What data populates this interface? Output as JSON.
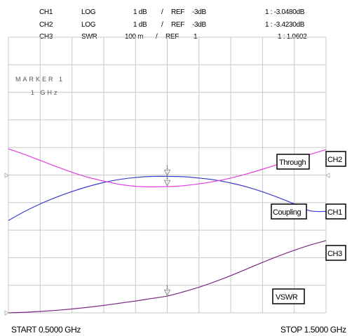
{
  "header": {
    "rows": [
      {
        "ch": "CH1",
        "fmt": "LOG",
        "scale": "1 dB",
        "sep": "/",
        "ref_label": "REF",
        "ref_value": "-3dB",
        "marker_value": "1 : -3.0480dB"
      },
      {
        "ch": "CH2",
        "fmt": "LOG",
        "scale": "1 dB",
        "sep": "/",
        "ref_label": "REF",
        "ref_value": "-3dB",
        "marker_value": "1 : -3.4230dB"
      },
      {
        "ch": "CH3",
        "fmt": "SWR",
        "scale": "100 m",
        "sep": "/",
        "ref_label": "REF",
        "ref_value": "1",
        "marker_value": "1 : 1.0602"
      }
    ]
  },
  "marker": {
    "title": "MARKER 1",
    "freq": "1 GHz",
    "number": "1"
  },
  "labels": {
    "through": "Through",
    "coupling": "Coupling",
    "vswr": "VSWR",
    "ch1_tag": "CH1",
    "ch2_tag": "CH2",
    "ch3_tag": "CH3"
  },
  "footer": {
    "start": "START 0.5000 GHz",
    "stop": "STOP 1.5000 GHz"
  },
  "colors": {
    "ch1": "#3b3bcc",
    "ch2": "#e040e0",
    "ch3": "#7a2a80",
    "grid": "#c8c8c8",
    "marker": "#909090"
  },
  "chart_data": {
    "type": "line",
    "x_unit": "GHz",
    "xlim": [
      0.5,
      1.5
    ],
    "grid": true,
    "divisions": {
      "x": 10,
      "y": 10
    },
    "series": [
      {
        "name": "CH1",
        "label": "Coupling",
        "scale_per_div": 1,
        "ref_value": -3,
        "ref_div": 5,
        "unit": "dB",
        "x": [
          0.5,
          0.55,
          0.6,
          0.65,
          0.7,
          0.75,
          0.8,
          0.85,
          0.9,
          0.95,
          1.0,
          1.05,
          1.1,
          1.15,
          1.2,
          1.25,
          1.3,
          1.35,
          1.4,
          1.45,
          1.5
        ],
        "y": [
          -4.65,
          -4.33,
          -4.05,
          -3.81,
          -3.6,
          -3.42,
          -3.27,
          -3.16,
          -3.09,
          -3.05,
          -3.05,
          -3.06,
          -3.11,
          -3.18,
          -3.29,
          -3.43,
          -3.61,
          -3.82,
          -4.05,
          -4.3,
          -4.32
        ]
      },
      {
        "name": "CH2",
        "label": "Through",
        "scale_per_div": 1,
        "ref_value": -3,
        "ref_div": 5,
        "unit": "dB",
        "x": [
          0.5,
          0.55,
          0.6,
          0.65,
          0.7,
          0.75,
          0.8,
          0.85,
          0.9,
          0.95,
          1.0,
          1.05,
          1.1,
          1.15,
          1.2,
          1.25,
          1.3,
          1.35,
          1.4,
          1.45,
          1.5
        ],
        "y": [
          -2.05,
          -2.25,
          -2.47,
          -2.69,
          -2.9,
          -3.08,
          -3.22,
          -3.34,
          -3.41,
          -3.43,
          -3.42,
          -3.39,
          -3.32,
          -3.23,
          -3.11,
          -2.96,
          -2.79,
          -2.61,
          -2.43,
          -2.25,
          -2.08
        ]
      },
      {
        "name": "CH3",
        "label": "VSWR",
        "scale_per_div": 0.1,
        "ref_value": 1,
        "ref_div": 0,
        "unit": "",
        "x": [
          0.5,
          0.55,
          0.6,
          0.65,
          0.7,
          0.75,
          0.8,
          0.85,
          0.9,
          0.95,
          1.0,
          1.05,
          1.1,
          1.15,
          1.2,
          1.25,
          1.3,
          1.35,
          1.4,
          1.45,
          1.5
        ],
        "y": [
          1.0,
          1.002,
          1.005,
          1.009,
          1.014,
          1.02,
          1.027,
          1.035,
          1.043,
          1.052,
          1.061,
          1.076,
          1.093,
          1.113,
          1.135,
          1.159,
          1.183,
          1.206,
          1.227,
          1.246,
          1.262
        ]
      }
    ],
    "marker": {
      "x": 1.0,
      "values": [
        -3.048,
        -3.423,
        1.0602
      ]
    }
  }
}
